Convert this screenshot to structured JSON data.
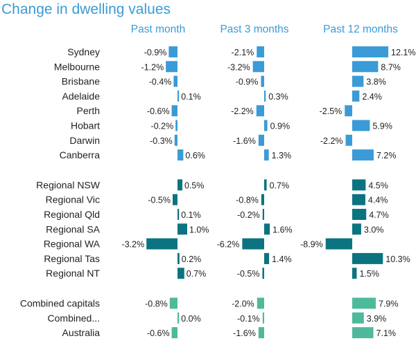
{
  "title": "Change in dwelling values",
  "chart_data": {
    "type": "bar",
    "orientation": "horizontal",
    "title": "Change in dwelling values",
    "panels": [
      "Past month",
      "Past 3 months",
      "Past 12 months"
    ],
    "categories": [
      "Sydney",
      "Melbourne",
      "Brisbane",
      "Adelaide",
      "Perth",
      "Hobart",
      "Darwin",
      "Canberra",
      "Regional NSW",
      "Regional Vic",
      "Regional Qld",
      "Regional SA",
      "Regional WA",
      "Regional Tas",
      "Regional NT",
      "Combined capitals",
      "Combined...",
      "Australia"
    ],
    "groups": [
      {
        "color": "#3a9bd6",
        "count": 8
      },
      {
        "color": "#0b7480",
        "count": 7
      },
      {
        "color": "#4fb99b",
        "count": 3
      }
    ],
    "series": [
      {
        "name": "Past month",
        "values": [
          -0.9,
          -1.2,
          -0.4,
          0.1,
          -0.6,
          -0.2,
          -0.3,
          0.6,
          0.5,
          -0.5,
          0.1,
          1.0,
          -3.2,
          0.2,
          0.7,
          -0.8,
          0.0,
          -0.6
        ]
      },
      {
        "name": "Past 3 months",
        "values": [
          -2.1,
          -3.2,
          -0.9,
          0.3,
          -2.2,
          0.9,
          -1.6,
          1.3,
          0.7,
          -0.8,
          -0.2,
          1.6,
          -6.2,
          1.4,
          -0.5,
          -2.0,
          -0.1,
          -1.6
        ]
      },
      {
        "name": "Past 12 months",
        "values": [
          12.1,
          8.7,
          3.8,
          2.4,
          -2.5,
          5.9,
          -2.2,
          7.2,
          4.5,
          4.4,
          4.7,
          3.0,
          -8.9,
          10.3,
          1.5,
          7.9,
          3.9,
          7.1
        ]
      }
    ],
    "value_suffix": "%"
  }
}
